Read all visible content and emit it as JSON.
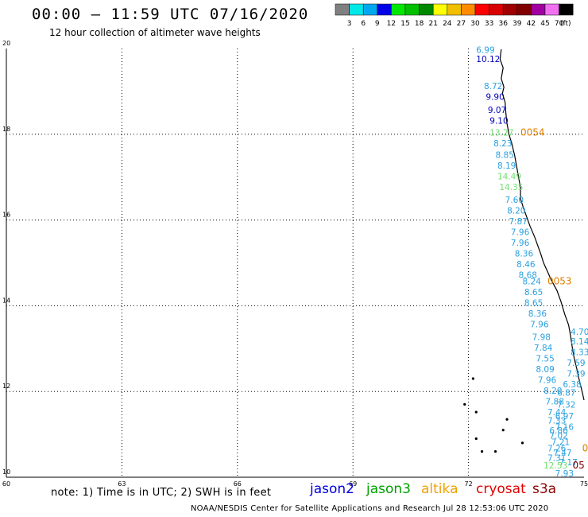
{
  "header": {
    "title": "00:00 – 11:59 UTC 07/16/2020",
    "subtitle": "12 hour collection of altimeter wave heights"
  },
  "legend": {
    "unit_label": "(ft)",
    "bins": [
      {
        "label": "3",
        "color": "#808080"
      },
      {
        "label": "6",
        "color": "#00e8e8"
      },
      {
        "label": "9",
        "color": "#00a8f0"
      },
      {
        "label": "12",
        "color": "#0000e8"
      },
      {
        "label": "15",
        "color": "#00e800"
      },
      {
        "label": "18",
        "color": "#00c000"
      },
      {
        "label": "21",
        "color": "#008800"
      },
      {
        "label": "24",
        "color": "#ffff00"
      },
      {
        "label": "27",
        "color": "#f0c000"
      },
      {
        "label": "30",
        "color": "#ff8c00"
      },
      {
        "label": "33",
        "color": "#ff0000"
      },
      {
        "label": "36",
        "color": "#d80000"
      },
      {
        "label": "39",
        "color": "#a00000"
      },
      {
        "label": "42",
        "color": "#800000"
      },
      {
        "label": "45",
        "color": "#a000a0"
      },
      {
        "label": "70",
        "color": "#f070f0"
      },
      {
        "label": "",
        "color": "#000000"
      }
    ]
  },
  "axes": {
    "y_ticks": [
      "10",
      "12",
      "14",
      "16",
      "18",
      "20"
    ],
    "x_ticks": [
      "60",
      "63",
      "66",
      "69",
      "72",
      "75"
    ],
    "lat_range": [
      10,
      20
    ],
    "lon_range": [
      60,
      75
    ]
  },
  "time_labels": [
    {
      "text": "0054",
      "lon": 73.35,
      "lat": 17.97,
      "color": "#e08000"
    },
    {
      "text": "0053",
      "lon": 74.05,
      "lat": 14.5,
      "color": "#e08000"
    },
    {
      "text": "0",
      "lon": 74.95,
      "lat": 10.6,
      "color": "#e08000"
    },
    {
      "text": "05",
      "lon": 74.7,
      "lat": 10.2,
      "color": "#800000"
    }
  ],
  "observations": [
    {
      "text": "6.99",
      "lon": 72.2,
      "lat": 19.9,
      "color": "#2aa0e0"
    },
    {
      "text": "10.12",
      "lon": 72.2,
      "lat": 19.68,
      "color": "#0000c0"
    },
    {
      "text": "8.72",
      "lon": 72.4,
      "lat": 19.05,
      "color": "#2aa0e0"
    },
    {
      "text": "9.90",
      "lon": 72.45,
      "lat": 18.8,
      "color": "#0000c0"
    },
    {
      "text": "9.07",
      "lon": 72.5,
      "lat": 18.5,
      "color": "#0000c0"
    },
    {
      "text": "9.10",
      "lon": 72.55,
      "lat": 18.25,
      "color": "#0000c0"
    },
    {
      "text": "13.27",
      "lon": 72.55,
      "lat": 17.97,
      "color": "#70e070"
    },
    {
      "text": "8.23",
      "lon": 72.65,
      "lat": 17.72,
      "color": "#2aa0e0"
    },
    {
      "text": "8.85",
      "lon": 72.7,
      "lat": 17.45,
      "color": "#2aa0e0"
    },
    {
      "text": "8.19",
      "lon": 72.75,
      "lat": 17.2,
      "color": "#2aa0e0"
    },
    {
      "text": "14.49",
      "lon": 72.75,
      "lat": 16.95,
      "color": "#70e070"
    },
    {
      "text": "14.35",
      "lon": 72.8,
      "lat": 16.7,
      "color": "#70e070"
    },
    {
      "text": "7.60",
      "lon": 72.95,
      "lat": 16.4,
      "color": "#2aa0e0"
    },
    {
      "text": "8.20",
      "lon": 73.0,
      "lat": 16.15,
      "color": "#2aa0e0"
    },
    {
      "text": "7.87",
      "lon": 73.05,
      "lat": 15.9,
      "color": "#2aa0e0"
    },
    {
      "text": "7.96",
      "lon": 73.1,
      "lat": 15.65,
      "color": "#2aa0e0"
    },
    {
      "text": "7.96",
      "lon": 73.1,
      "lat": 15.4,
      "color": "#2aa0e0"
    },
    {
      "text": "8.36",
      "lon": 73.2,
      "lat": 15.15,
      "color": "#2aa0e0"
    },
    {
      "text": "8.46",
      "lon": 73.25,
      "lat": 14.9,
      "color": "#2aa0e0"
    },
    {
      "text": "8.68",
      "lon": 73.3,
      "lat": 14.65,
      "color": "#2aa0e0"
    },
    {
      "text": "8.24",
      "lon": 73.4,
      "lat": 14.5,
      "color": "#2aa0e0"
    },
    {
      "text": "8.65",
      "lon": 73.45,
      "lat": 14.25,
      "color": "#2aa0e0"
    },
    {
      "text": "8.65",
      "lon": 73.45,
      "lat": 14.0,
      "color": "#2aa0e0"
    },
    {
      "text": "8.36",
      "lon": 73.55,
      "lat": 13.75,
      "color": "#2aa0e0"
    },
    {
      "text": "7.96",
      "lon": 73.6,
      "lat": 13.5,
      "color": "#2aa0e0"
    },
    {
      "text": "4.70",
      "lon": 74.65,
      "lat": 13.32,
      "color": "#2aa0e0"
    },
    {
      "text": "7.98",
      "lon": 73.65,
      "lat": 13.2,
      "color": "#2aa0e0"
    },
    {
      "text": "8.14",
      "lon": 74.65,
      "lat": 13.1,
      "color": "#2aa0e0"
    },
    {
      "text": "7.84",
      "lon": 73.7,
      "lat": 12.95,
      "color": "#2aa0e0"
    },
    {
      "text": "8.33",
      "lon": 74.65,
      "lat": 12.85,
      "color": "#2aa0e0"
    },
    {
      "text": "7.55",
      "lon": 73.75,
      "lat": 12.7,
      "color": "#2aa0e0"
    },
    {
      "text": "7.59",
      "lon": 74.55,
      "lat": 12.6,
      "color": "#2aa0e0"
    },
    {
      "text": "8.09",
      "lon": 73.75,
      "lat": 12.45,
      "color": "#2aa0e0"
    },
    {
      "text": "7.39",
      "lon": 74.55,
      "lat": 12.35,
      "color": "#2aa0e0"
    },
    {
      "text": "7.96",
      "lon": 73.8,
      "lat": 12.2,
      "color": "#2aa0e0"
    },
    {
      "text": "6.38",
      "lon": 74.45,
      "lat": 12.1,
      "color": "#2aa0e0"
    },
    {
      "text": "8.20",
      "lon": 73.95,
      "lat": 11.95,
      "color": "#2aa0e0"
    },
    {
      "text": "6.87",
      "lon": 74.3,
      "lat": 11.9,
      "color": "#2aa0e0"
    },
    {
      "text": "7.88",
      "lon": 74.0,
      "lat": 11.7,
      "color": "#2aa0e0"
    },
    {
      "text": "7.32",
      "lon": 74.3,
      "lat": 11.62,
      "color": "#2aa0e0"
    },
    {
      "text": "7.44",
      "lon": 74.05,
      "lat": 11.45,
      "color": "#2aa0e0"
    },
    {
      "text": "6.97",
      "lon": 74.25,
      "lat": 11.35,
      "color": "#2aa0e0"
    },
    {
      "text": "7.33",
      "lon": 74.05,
      "lat": 11.25,
      "color": "#2aa0e0"
    },
    {
      "text": "7.16",
      "lon": 74.25,
      "lat": 11.1,
      "color": "#2aa0e0"
    },
    {
      "text": "6.86",
      "lon": 74.1,
      "lat": 11.02,
      "color": "#2aa0e0"
    },
    {
      "text": "7.02",
      "lon": 74.1,
      "lat": 10.9,
      "color": "#2aa0e0"
    },
    {
      "text": "7.21",
      "lon": 74.15,
      "lat": 10.75,
      "color": "#2aa0e0"
    },
    {
      "text": "7.26",
      "lon": 74.05,
      "lat": 10.6,
      "color": "#2aa0e0"
    },
    {
      "text": "7.47",
      "lon": 74.2,
      "lat": 10.5,
      "color": "#2aa0e0"
    },
    {
      "text": "7.31",
      "lon": 74.05,
      "lat": 10.38,
      "color": "#2aa0e0"
    },
    {
      "text": "7.17",
      "lon": 74.35,
      "lat": 10.28,
      "color": "#2aa0e0"
    },
    {
      "text": "12.53",
      "lon": 73.95,
      "lat": 10.2,
      "color": "#70e070"
    },
    {
      "text": "7.93",
      "lon": 74.25,
      "lat": 10.02,
      "color": "#2aa0e0"
    }
  ],
  "note": "note: 1) Time is in UTC; 2) SWH is in feet",
  "satellites": [
    {
      "name": "jason2",
      "color": "#0000e0"
    },
    {
      "name": "jason3",
      "color": "#00a000"
    },
    {
      "name": "altika",
      "color": "#f0a000"
    },
    {
      "name": "cryosat",
      "color": "#e00000"
    },
    {
      "name": "s3a",
      "color": "#8b0000"
    }
  ],
  "footer": "NOAA/NESDIS Center for Satellite Applications and Research    Jul 28 12:53:06 UTC 2020"
}
